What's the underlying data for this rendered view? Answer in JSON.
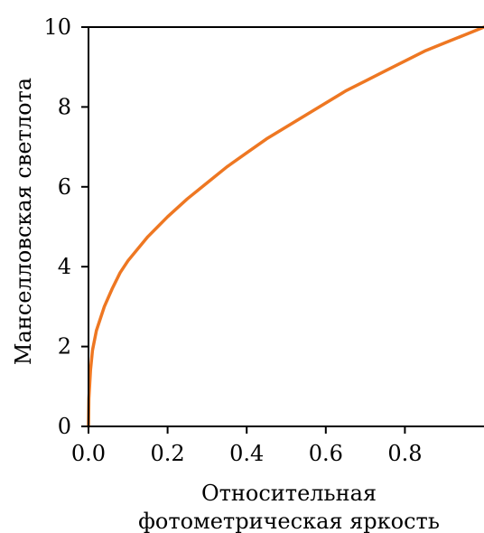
{
  "chart_data": {
    "type": "line",
    "title": "",
    "xlabel_lines": [
      "Относительная",
      "фотометрическая яркость"
    ],
    "ylabel": "Манселловская светлота",
    "xlim": [
      0,
      1
    ],
    "ylim": [
      0,
      10
    ],
    "x_ticks": [
      "0.0",
      "0.2",
      "0.4",
      "0.6",
      "0.8"
    ],
    "y_ticks": [
      "0",
      "2",
      "4",
      "6",
      "8",
      "10"
    ],
    "grid": false,
    "legend": "none",
    "series": [
      {
        "color": "#ee7722",
        "x": [
          0,
          0.001,
          0.005,
          0.01,
          0.02,
          0.04,
          0.06,
          0.08,
          0.1,
          0.15,
          0.2,
          0.25,
          0.3,
          0.35,
          0.4,
          0.45,
          0.5,
          0.55,
          0.6,
          0.65,
          0.7,
          0.75,
          0.8,
          0.85,
          0.9,
          0.95,
          1.0
        ],
        "y": [
          0,
          0.7,
          1.4,
          1.9,
          2.4,
          3.0,
          3.45,
          3.85,
          4.15,
          4.75,
          5.25,
          5.7,
          6.1,
          6.5,
          6.85,
          7.2,
          7.5,
          7.8,
          8.1,
          8.4,
          8.65,
          8.9,
          9.15,
          9.4,
          9.6,
          9.8,
          10.0
        ]
      }
    ]
  }
}
